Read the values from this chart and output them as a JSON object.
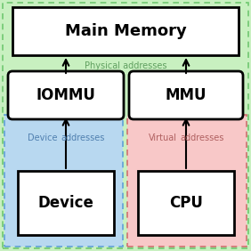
{
  "bg_green": "#c8f0c0",
  "bg_blue": "#b8d8f0",
  "bg_red": "#f8c8c8",
  "box_color": "#ffffff",
  "box_edge": "#000000",
  "arrow_color": "#000000",
  "label_green": "#60a060",
  "label_blue": "#5080b0",
  "label_red": "#b06060",
  "green_dash_color": "#70c870",
  "blue_dash_color": "#60a0d8",
  "red_dash_color": "#d07070",
  "main_memory_text": "Main Memory",
  "iommu_text": "IOMMU",
  "mmu_text": "MMU",
  "device_text": "Device",
  "cpu_text": "CPU",
  "phys_addr_text": "Physical addresses",
  "dev_text": "Device",
  "addr_text": "addresses",
  "virt_text": "Virtual",
  "vaddr_text": "addresses"
}
